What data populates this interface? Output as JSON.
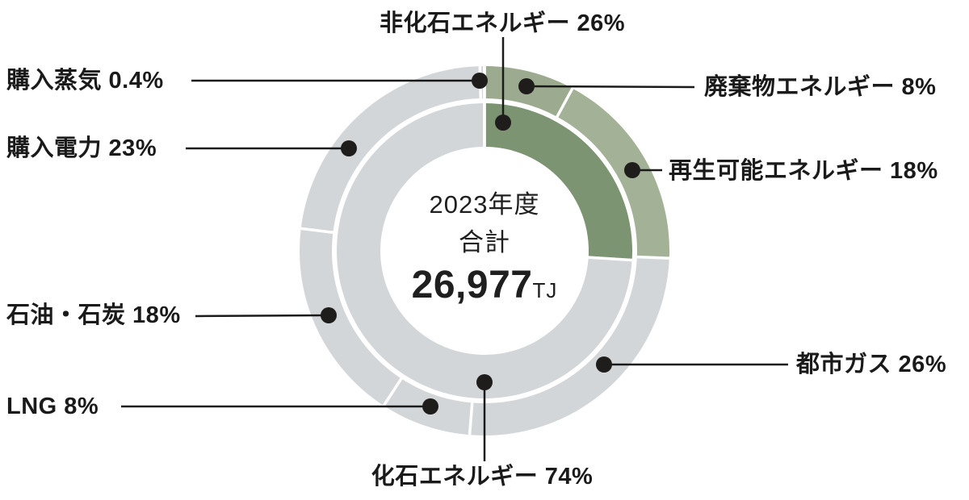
{
  "chart_data": {
    "type": "donut",
    "title": "2023年度 合計 26,977TJ エネルギー構成比",
    "direction": "clockwise",
    "start_angle_deg": 0,
    "geometry_hint": {
      "outer_ring_radii": [
        189,
        229
      ],
      "inner_ring_radii": [
        129,
        183
      ]
    },
    "divider_color": "#ffffff",
    "rings": {
      "inner": {
        "segments": [
          {
            "label": "非化石エネルギー",
            "pct": 26,
            "color": "#7C9471"
          },
          {
            "label": "化石エネルギー",
            "pct": 74,
            "color": "#D3D6D9"
          }
        ]
      },
      "outer": {
        "segments": [
          {
            "label": "廃棄物エネルギー",
            "pct": 8,
            "color": "#9CAB90"
          },
          {
            "label": "再生可能エネルギー",
            "pct": 18,
            "color": "#A3B197"
          },
          {
            "label": "都市ガス",
            "pct": 26,
            "color": "#D3D6D9"
          },
          {
            "label": "LNG",
            "pct": 8,
            "color": "#D3D6D9"
          },
          {
            "label": "石油・石炭",
            "pct": 18,
            "color": "#D3D6D9"
          },
          {
            "label": "購入電力",
            "pct": 23,
            "color": "#D3D6D9"
          },
          {
            "label": "購入蒸気",
            "pct": 0.4,
            "color": "#D3D6D9"
          }
        ]
      }
    }
  },
  "center": {
    "fiscal_year": "2023年度",
    "total_label": "合計",
    "total_value": "26,977",
    "total_unit": "TJ"
  },
  "labels": {
    "non_fossil": "非化石エネルギー 26%",
    "purchased_steam": "購入蒸気 0.4%",
    "purchased_power": "購入電力 23%",
    "oil_coal": "石油・石炭 18%",
    "lng": "LNG 8%",
    "fossil": "化石エネルギー 74%",
    "waste_energy": "廃棄物エネルギー 8%",
    "renewable_energy": "再生可能エネルギー 18%",
    "city_gas": "都市ガス 26%"
  }
}
